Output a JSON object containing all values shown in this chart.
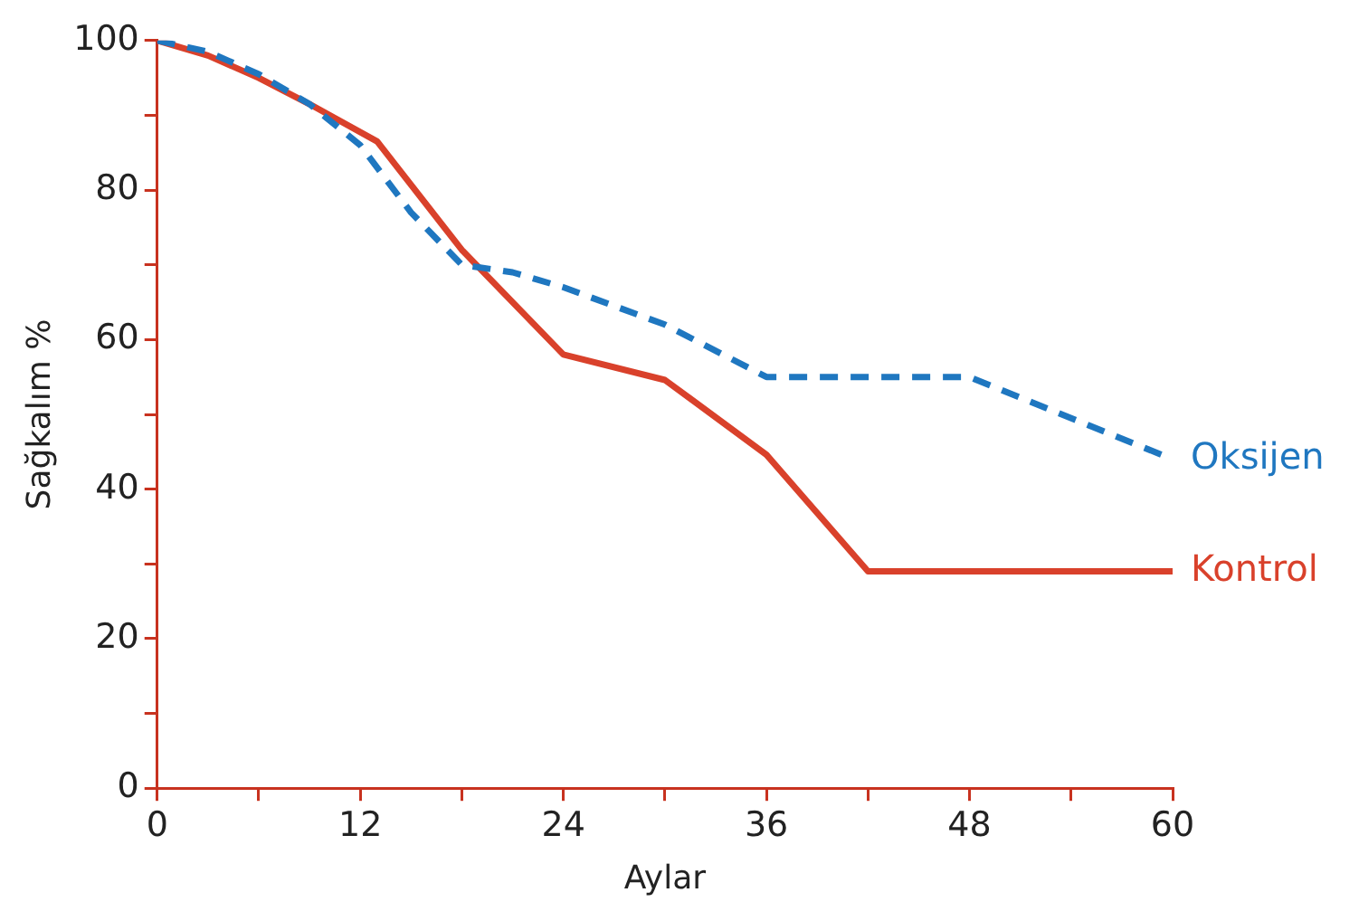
{
  "chart_data": {
    "type": "line",
    "xlabel": "Aylar",
    "ylabel": "Sağkalım %",
    "xlim": [
      0,
      60
    ],
    "ylim": [
      0,
      100
    ],
    "xticks": [
      0,
      {
        "value": 6,
        "label": null
      },
      12,
      {
        "value": 18,
        "label": null
      },
      24,
      {
        "value": 30,
        "label": null
      },
      36,
      {
        "value": 42,
        "label": null
      },
      48,
      {
        "value": 54,
        "label": null
      },
      60
    ],
    "yticks": [
      0,
      {
        "value": 10,
        "label": null
      },
      20,
      {
        "value": 30,
        "label": null
      },
      40,
      {
        "value": 50,
        "label": null
      },
      60,
      {
        "value": 70,
        "label": null
      },
      80,
      {
        "value": 90,
        "label": null
      },
      100
    ],
    "grid": false,
    "legend": false,
    "marker": "none",
    "series": [
      {
        "name": "Oksijen",
        "color": "#1f77c0",
        "line_style": "dashed",
        "x": [
          0,
          3,
          6,
          9,
          12,
          15,
          18,
          21,
          24,
          30,
          36,
          48,
          60
        ],
        "values": [
          100,
          98.5,
          95.5,
          91.5,
          86,
          77,
          70,
          69,
          67,
          62,
          55,
          55,
          44
        ]
      },
      {
        "name": "Kontrol",
        "color": "#d9412b",
        "line_style": "solid",
        "x": [
          0,
          3,
          6,
          9,
          13,
          18,
          24,
          30,
          36,
          42,
          60
        ],
        "values": [
          100,
          98,
          95,
          91.5,
          86.5,
          72,
          58,
          54.6,
          44.6,
          29,
          29
        ]
      }
    ]
  }
}
